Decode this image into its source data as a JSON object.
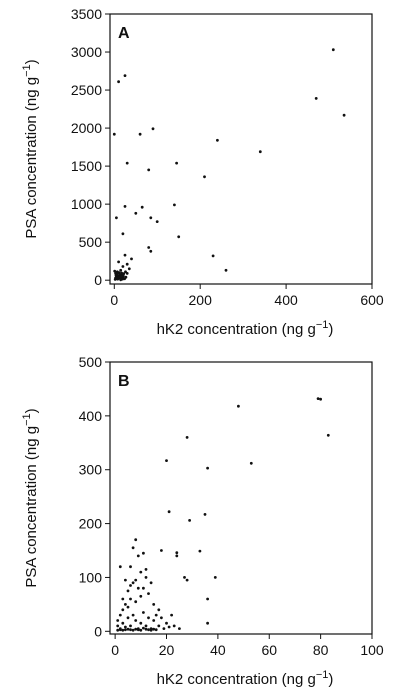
{
  "chart_data": [
    {
      "type": "scatter",
      "panel_label": "A",
      "xlabel": "hK2 concentration (ng g",
      "ylabel": "PSA concentration (ng g",
      "unit_exponent": "−1",
      "xlim": [
        -10,
        600
      ],
      "ylim": [
        -50,
        3500
      ],
      "xticks": [
        0,
        200,
        400,
        600
      ],
      "yticks": [
        0,
        500,
        1000,
        1500,
        2000,
        2500,
        3000,
        3500
      ],
      "points": [
        [
          510,
          3030
        ],
        [
          535,
          2170
        ],
        [
          470,
          2390
        ],
        [
          340,
          1690
        ],
        [
          240,
          1840
        ],
        [
          210,
          1360
        ],
        [
          25,
          2690
        ],
        [
          10,
          2610
        ],
        [
          90,
          1990
        ],
        [
          60,
          1920
        ],
        [
          30,
          1540
        ],
        [
          80,
          1450
        ],
        [
          145,
          1540
        ],
        [
          0,
          1920
        ],
        [
          25,
          970
        ],
        [
          50,
          880
        ],
        [
          65,
          960
        ],
        [
          85,
          820
        ],
        [
          100,
          770
        ],
        [
          140,
          990
        ],
        [
          150,
          570
        ],
        [
          230,
          320
        ],
        [
          260,
          130
        ],
        [
          20,
          610
        ],
        [
          5,
          820
        ],
        [
          80,
          430
        ],
        [
          85,
          380
        ],
        [
          40,
          280
        ],
        [
          25,
          330
        ],
        [
          30,
          210
        ],
        [
          20,
          180
        ],
        [
          15,
          130
        ],
        [
          35,
          150
        ],
        [
          10,
          240
        ],
        [
          5,
          40
        ],
        [
          2,
          10
        ],
        [
          4,
          20
        ],
        [
          6,
          30
        ],
        [
          8,
          15
        ],
        [
          10,
          50
        ],
        [
          12,
          25
        ],
        [
          14,
          60
        ],
        [
          16,
          35
        ],
        [
          18,
          70
        ],
        [
          20,
          45
        ],
        [
          22,
          85
        ],
        [
          3,
          90
        ],
        [
          7,
          110
        ],
        [
          11,
          100
        ],
        [
          15,
          5
        ],
        [
          19,
          15
        ],
        [
          1,
          120
        ],
        [
          24,
          20
        ],
        [
          9,
          60
        ],
        [
          13,
          75
        ],
        [
          17,
          95
        ],
        [
          21,
          55
        ],
        [
          5,
          55
        ],
        [
          6,
          75
        ],
        [
          8,
          100
        ],
        [
          12,
          45
        ],
        [
          3,
          30
        ],
        [
          27,
          40
        ],
        [
          30,
          90
        ],
        [
          4,
          65
        ],
        [
          26,
          110
        ]
      ]
    },
    {
      "type": "scatter",
      "panel_label": "B",
      "xlabel": "hK2 concentration (ng g",
      "ylabel": "PSA concentration (ng g",
      "unit_exponent": "−1",
      "xlim": [
        -2,
        100
      ],
      "ylim": [
        -5,
        500
      ],
      "xticks": [
        0,
        20,
        40,
        60,
        80,
        100
      ],
      "yticks": [
        0,
        100,
        200,
        300,
        400,
        500
      ],
      "points": [
        [
          79,
          432
        ],
        [
          80,
          431
        ],
        [
          48,
          418
        ],
        [
          83,
          364
        ],
        [
          28,
          360
        ],
        [
          36,
          303
        ],
        [
          53,
          312
        ],
        [
          20,
          317
        ],
        [
          21,
          222
        ],
        [
          29,
          206
        ],
        [
          24,
          146
        ],
        [
          35,
          217
        ],
        [
          36,
          60
        ],
        [
          36,
          15
        ],
        [
          39,
          100
        ],
        [
          33,
          149
        ],
        [
          24,
          140
        ],
        [
          27,
          100
        ],
        [
          28,
          95
        ],
        [
          18,
          150
        ],
        [
          8,
          170
        ],
        [
          7,
          155
        ],
        [
          6,
          120
        ],
        [
          9,
          140
        ],
        [
          11,
          145
        ],
        [
          12,
          100
        ],
        [
          13,
          70
        ],
        [
          14,
          90
        ],
        [
          15,
          50
        ],
        [
          17,
          40
        ],
        [
          5,
          75
        ],
        [
          6,
          60
        ],
        [
          7,
          90
        ],
        [
          8,
          55
        ],
        [
          9,
          80
        ],
        [
          10,
          65
        ],
        [
          4,
          50
        ],
        [
          3,
          40
        ],
        [
          2,
          30
        ],
        [
          1,
          20
        ],
        [
          1,
          10
        ],
        [
          2,
          5
        ],
        [
          3,
          15
        ],
        [
          4,
          8
        ],
        [
          5,
          25
        ],
        [
          6,
          10
        ],
        [
          7,
          30
        ],
        [
          8,
          20
        ],
        [
          9,
          5
        ],
        [
          10,
          15
        ],
        [
          11,
          35
        ],
        [
          12,
          10
        ],
        [
          13,
          25
        ],
        [
          14,
          5
        ],
        [
          15,
          20
        ],
        [
          16,
          30
        ],
        [
          17,
          10
        ],
        [
          18,
          25
        ],
        [
          19,
          5
        ],
        [
          20,
          15
        ],
        [
          21,
          8
        ],
        [
          22,
          30
        ],
        [
          23,
          10
        ],
        [
          25,
          5
        ],
        [
          1,
          2
        ],
        [
          2,
          3
        ],
        [
          3,
          2
        ],
        [
          4,
          3
        ],
        [
          5,
          4
        ],
        [
          6,
          3
        ],
        [
          7,
          2
        ],
        [
          8,
          4
        ],
        [
          9,
          3
        ],
        [
          10,
          2
        ],
        [
          11,
          6
        ],
        [
          12,
          4
        ],
        [
          13,
          3
        ],
        [
          14,
          2
        ],
        [
          15,
          4
        ],
        [
          16,
          3
        ],
        [
          3,
          60
        ],
        [
          5,
          45
        ],
        [
          6,
          85
        ],
        [
          8,
          95
        ],
        [
          2,
          120
        ],
        [
          4,
          95
        ],
        [
          10,
          110
        ],
        [
          12,
          115
        ],
        [
          11,
          80
        ]
      ]
    }
  ]
}
